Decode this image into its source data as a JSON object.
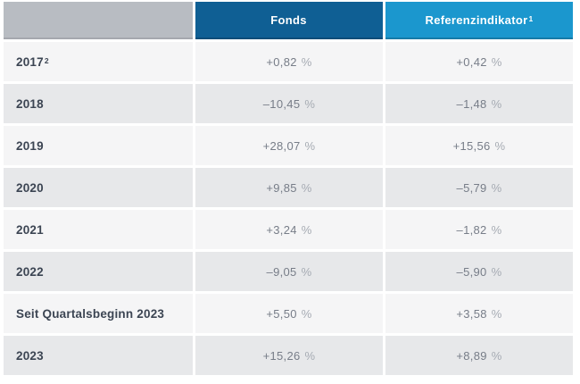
{
  "table": {
    "unit": "%",
    "columns": [
      {
        "label": "Fonds",
        "sup": ""
      },
      {
        "label": "Referenzindikator",
        "sup": "1"
      }
    ],
    "rows": [
      {
        "label": "2017",
        "sup": "2",
        "fonds": "+0,82",
        "ref": "+0,42",
        "shade": "light"
      },
      {
        "label": "2018",
        "sup": "",
        "fonds": "–10,45",
        "ref": "–1,48",
        "shade": "dark"
      },
      {
        "label": "2019",
        "sup": "",
        "fonds": "+28,07",
        "ref": "+15,56",
        "shade": "light"
      },
      {
        "label": "2020",
        "sup": "",
        "fonds": "+9,85",
        "ref": "–5,79",
        "shade": "dark"
      },
      {
        "label": "2021",
        "sup": "",
        "fonds": "+3,24",
        "ref": "–1,82",
        "shade": "light"
      },
      {
        "label": "2022",
        "sup": "",
        "fonds": "–9,05",
        "ref": "–5,90",
        "shade": "dark"
      },
      {
        "label": "Seit Quartalsbeginn 2023",
        "sup": "",
        "fonds": "+5,50",
        "ref": "+3,58",
        "shade": "light"
      },
      {
        "label": "2023",
        "sup": "",
        "fonds": "+15,26",
        "ref": "+8,89",
        "shade": "dark"
      }
    ],
    "colors": {
      "header_fonds": "#0f5f94",
      "header_referenzindikator": "#1b97ce",
      "header_corner_gray": "#b8bcc2",
      "row_light": "#f5f5f6",
      "row_dark": "#e7e8ea",
      "row_label_text": "#3c4553",
      "value_text": "#777d88",
      "percent_text": "#a6abb3"
    }
  },
  "chart_data": {
    "type": "table",
    "title": "",
    "categories": [
      "2017",
      "2018",
      "2019",
      "2020",
      "2021",
      "2022",
      "Seit Quartalsbeginn 2023",
      "2023"
    ],
    "series": [
      {
        "name": "Fonds",
        "values": [
          0.82,
          -10.45,
          28.07,
          9.85,
          3.24,
          -9.05,
          5.5,
          15.26
        ]
      },
      {
        "name": "Referenzindikator",
        "values": [
          0.42,
          -1.48,
          15.56,
          -5.79,
          -1.82,
          -5.9,
          3.58,
          8.89
        ]
      }
    ],
    "unit": "%",
    "notes": "Values shown with German decimal comma; footnote markers: Referenzindikator¹, 2017²"
  }
}
